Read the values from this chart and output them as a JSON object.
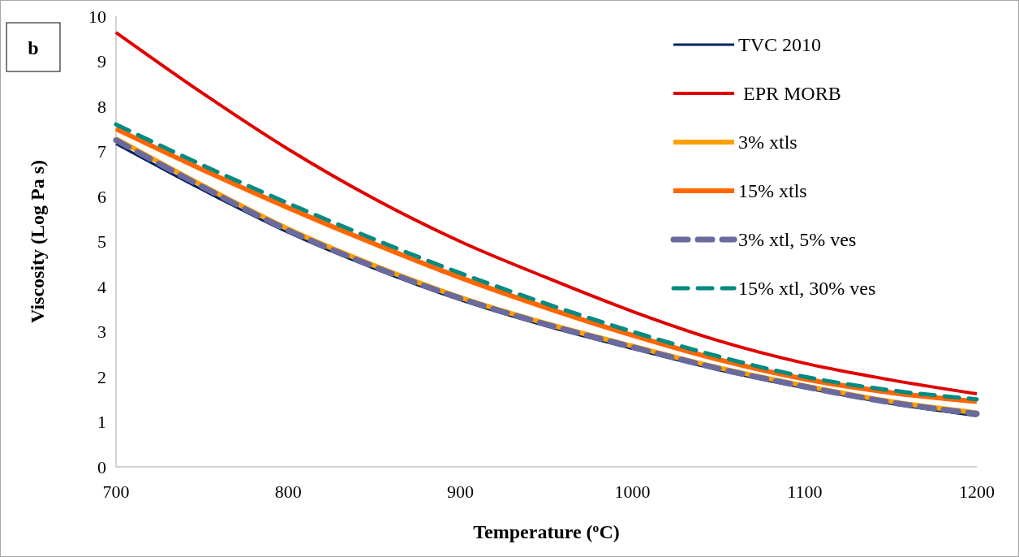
{
  "chart_data": {
    "type": "line",
    "xlabel": "Temperature ($^{o}$C)",
    "ylabel": "Viscosity (Log Pa s)",
    "annotations": [
      "b"
    ],
    "x": [
      700,
      750,
      800,
      850,
      900,
      950,
      1000,
      1050,
      1100,
      1150,
      1200
    ],
    "xlim": [
      700,
      1200
    ],
    "xticks": [
      700,
      800,
      900,
      1000,
      1100,
      1200
    ],
    "ylim": [
      0,
      10
    ],
    "yticks": [
      0,
      1,
      2,
      3,
      4,
      5,
      6,
      7,
      8,
      9,
      10
    ],
    "grid": false,
    "legend": "top right",
    "series": [
      {
        "name": "TVC 2010",
        "color": "#002060",
        "line_style": "solid",
        "values": [
          7.17,
          6.15,
          5.2,
          4.4,
          3.7,
          3.12,
          2.62,
          2.15,
          1.75,
          1.4,
          1.13
        ]
      },
      {
        "name": " EPR MORB",
        "color": "#e00000",
        "line_style": "solid",
        "values": [
          9.64,
          8.3,
          7.05,
          5.95,
          5.0,
          4.2,
          3.45,
          2.8,
          2.3,
          1.93,
          1.62
        ]
      },
      {
        "name": "3% xtls",
        "color": "#ffa000",
        "line_style": "solid",
        "values": [
          7.28,
          6.25,
          5.28,
          4.47,
          3.76,
          3.18,
          2.68,
          2.2,
          1.8,
          1.45,
          1.2
        ]
      },
      {
        "name": "15% xtls",
        "color": "#ff6600",
        "line_style": "solid",
        "values": [
          7.5,
          6.6,
          5.75,
          4.95,
          4.2,
          3.53,
          2.92,
          2.38,
          1.95,
          1.65,
          1.45
        ]
      },
      {
        "name": "3% xtl, 5% ves",
        "color": "#6a6a9e",
        "line_style": "dashed",
        "values": [
          7.25,
          6.22,
          5.25,
          4.44,
          3.74,
          3.16,
          2.66,
          2.18,
          1.78,
          1.43,
          1.18
        ]
      },
      {
        "name": "15% xtl, 30% ves",
        "color": "#008a80",
        "line_style": "dashed",
        "values": [
          7.6,
          6.7,
          5.85,
          5.05,
          4.3,
          3.62,
          3.0,
          2.45,
          2.0,
          1.7,
          1.5
        ]
      }
    ]
  }
}
